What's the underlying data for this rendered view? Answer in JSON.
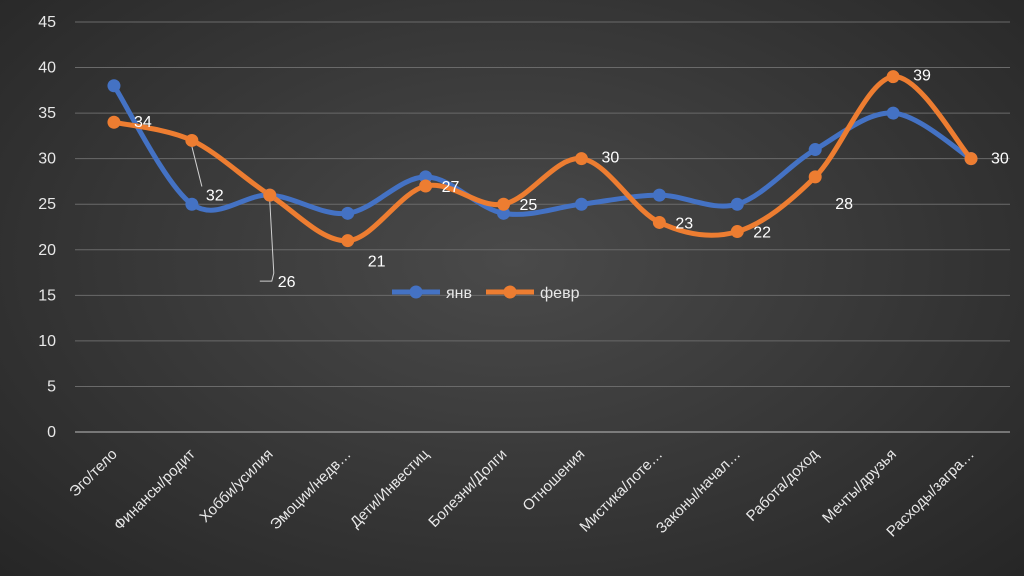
{
  "chart_data": {
    "type": "line",
    "categories": [
      "Эго/тело",
      "Финансы/родит",
      "Хобби/усилия",
      "Эмоции/недв…",
      "Дети/Инвестиц",
      "Болезни/Долги",
      "Отношения",
      "Мистика/лоте…",
      "Законы/начал…",
      "Работа/доход",
      "Мечты/друзья",
      "Расходы/загра…"
    ],
    "series": [
      {
        "name": "янв",
        "values": [
          38,
          25,
          26,
          24,
          28,
          24,
          25,
          26,
          25,
          31,
          35,
          30
        ],
        "color": "#4472C4",
        "data_labels": false
      },
      {
        "name": "февр",
        "values": [
          34,
          32,
          26,
          21,
          27,
          25,
          30,
          23,
          22,
          28,
          39,
          30
        ],
        "color": "#ED7D31",
        "data_labels": true
      }
    ],
    "ylim": [
      0,
      45
    ],
    "yticks": [
      "0",
      "5",
      "10",
      "15",
      "20",
      "25",
      "30",
      "35",
      "40",
      "45"
    ],
    "smooth": true,
    "grid": true,
    "legend_placement": "center",
    "title": "",
    "xlabel": "",
    "ylabel": ""
  }
}
